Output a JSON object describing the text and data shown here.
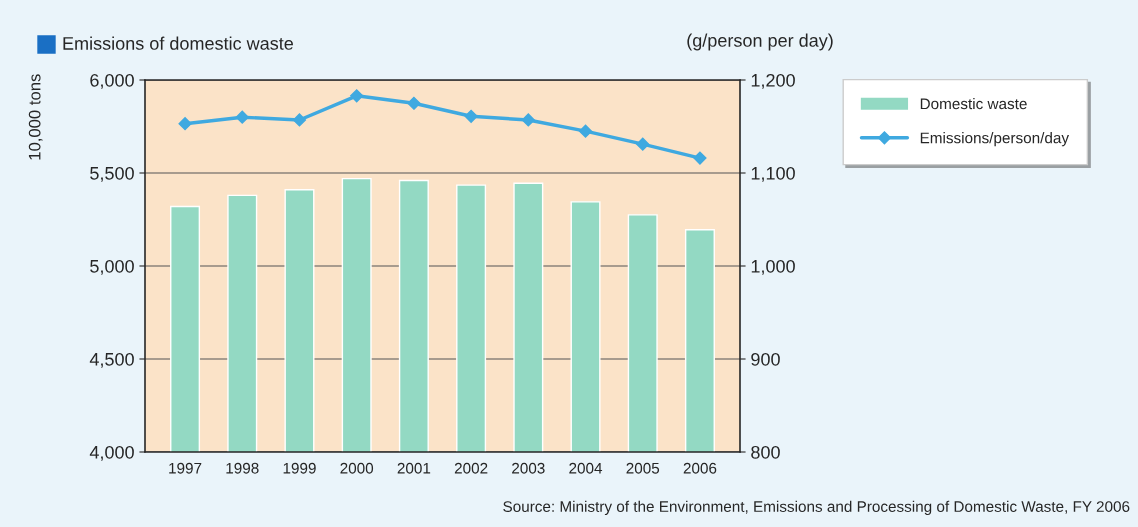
{
  "chart_data": {
    "type": "bar",
    "title": "Emissions of domestic waste",
    "ylabel": "10,000 tons",
    "y2label": "(g/person per day)",
    "categories": [
      "1997",
      "1998",
      "1999",
      "2000",
      "2001",
      "2002",
      "2003",
      "2004",
      "2005",
      "2006"
    ],
    "series": [
      {
        "name": "Domestic waste",
        "color": "#93d9c3",
        "values": [
          5320,
          5380,
          5410,
          5470,
          5460,
          5435,
          5445,
          5345,
          5275,
          5195
        ]
      },
      {
        "name": "Emissions/person/day",
        "type": "line",
        "axis": "y2",
        "color": "#3fa9e0",
        "marker": "diamond",
        "values": [
          1153,
          1160,
          1157,
          1183,
          1175,
          1161,
          1157,
          1145,
          1131,
          1116
        ]
      }
    ],
    "ylim": [
      4000,
      6000
    ],
    "yticks": [
      {
        "value": 4000,
        "label": "4,000"
      },
      {
        "value": 4500,
        "label": "4,500"
      },
      {
        "value": 5000,
        "label": "5,000"
      },
      {
        "value": 5500,
        "label": "5,500"
      },
      {
        "value": 6000,
        "label": "6,000"
      }
    ],
    "y2lim": [
      800,
      1200
    ],
    "y2ticks": [
      800,
      900,
      {
        "value": 1000,
        "label": "1,000"
      },
      {
        "value": 1100,
        "label": "1,100"
      },
      {
        "value": 1200,
        "label": "1,200"
      }
    ],
    "grid": "y",
    "legend": "top right",
    "annotations": [
      "Source: Ministry of the Environment, Emissions and Processing of Domestic Waste, FY 2006"
    ]
  }
}
